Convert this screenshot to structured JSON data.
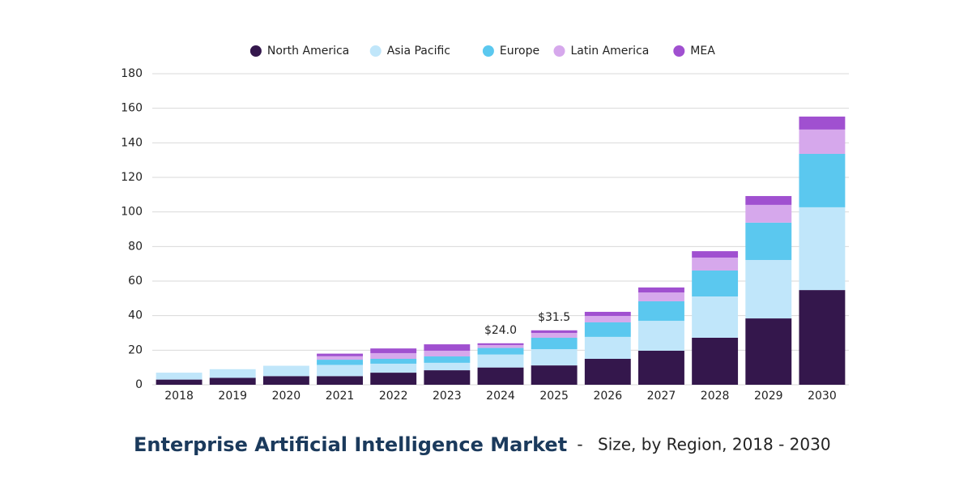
{
  "chart_data": {
    "type": "stacked_bar",
    "title": "Enterprise Artificial Intelligence Market",
    "title_separator": "-",
    "subtitle": "Size, by Region, 2018 - 2030",
    "categories": [
      "2018",
      "2019",
      "2020",
      "2021",
      "2022",
      "2023",
      "2024",
      "2025",
      "2026",
      "2027",
      "2028",
      "2029",
      "2030"
    ],
    "series": [
      {
        "name": "North America",
        "color": "#34174c",
        "values": [
          3,
          4,
          5,
          5,
          7,
          8.4,
          10,
          11.2,
          15,
          19.7,
          27.2,
          38.4,
          54.8
        ]
      },
      {
        "name": "Asia Pacific",
        "color": "#c0e6fa",
        "values": [
          4,
          5,
          6,
          6.5,
          5.2,
          4.3,
          7.5,
          9.4,
          12.7,
          17.3,
          23.9,
          33.8,
          47.9
        ]
      },
      {
        "name": "Europe",
        "color": "#5bc8ef",
        "values": [
          0,
          0,
          0,
          3,
          2.8,
          3.7,
          3.8,
          6.6,
          8.4,
          11.3,
          15,
          21.6,
          30.9
        ]
      },
      {
        "name": "Latin America",
        "color": "#d6a8ec",
        "values": [
          0,
          0,
          0,
          2,
          3.3,
          3.3,
          1.7,
          2.8,
          3.7,
          5.1,
          7.5,
          10.3,
          14.1
        ]
      },
      {
        "name": "MEA",
        "color": "#a050d0",
        "values": [
          0,
          0,
          0,
          1.5,
          2.7,
          3.7,
          1.0,
          1.5,
          2.4,
          2.9,
          3.7,
          5.1,
          7.5
        ]
      }
    ],
    "annotations": [
      {
        "x": "2024",
        "value": 24.0,
        "label": "$24.0"
      },
      {
        "x": "2025",
        "value": 31.5,
        "label": "$31.5"
      }
    ],
    "ylim": [
      0,
      180
    ],
    "yticks": [
      0,
      20,
      40,
      60,
      80,
      100,
      120,
      140,
      160,
      180
    ],
    "grid": true,
    "legend": "top"
  }
}
